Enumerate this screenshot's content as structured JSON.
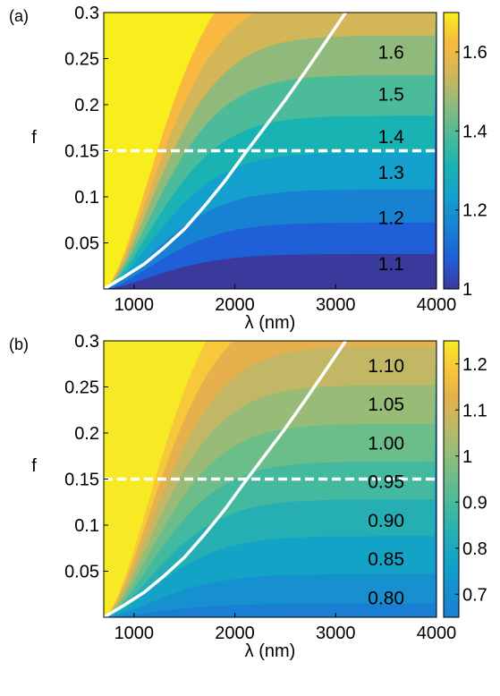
{
  "chart_data": [
    {
      "type": "contour",
      "panel_label": "(a)",
      "xlabel": "λ (nm)",
      "ylabel": "f",
      "xlim": [
        700,
        4000
      ],
      "ylim": [
        0,
        0.3
      ],
      "xticks": [
        1000,
        2000,
        3000,
        4000
      ],
      "xtick_labels": [
        "1000",
        "2000",
        "3000",
        "4000"
      ],
      "yticks": [
        0.05,
        0.1,
        0.15,
        0.2,
        0.25,
        0.3
      ],
      "ytick_labels": [
        "0.05",
        "0.1",
        "0.15",
        "0.2",
        "0.25",
        "0.3"
      ],
      "colorbar": {
        "range": [
          1.0,
          1.7
        ],
        "ticks": [
          1,
          1.2,
          1.4,
          1.6
        ],
        "tick_labels": [
          "1",
          "1.2",
          "1.4",
          "1.6"
        ]
      },
      "contour_levels": [
        1.1,
        1.2,
        1.3,
        1.4,
        1.5,
        1.6
      ],
      "contour_labels": [
        "1.1",
        "1.2",
        "1.3",
        "1.4",
        "1.5",
        "1.6"
      ],
      "contour_label_x": 3550,
      "contour_label_f": [
        0.028,
        0.078,
        0.127,
        0.166,
        0.212,
        0.258
      ],
      "band_colors": [
        "#3a3a9c",
        "#1f5fd8",
        "#1882d2",
        "#13a0cc",
        "#1ab3b3",
        "#4bbb99",
        "#8fba7c",
        "#d2b658",
        "#f9b840",
        "#f8ee1e"
      ],
      "asymptote_f": [
        0.038,
        0.072,
        0.108,
        0.148,
        0.188,
        0.232,
        0.275,
        0.32,
        0.37
      ],
      "white_curve": [
        [
          700,
          0.0
        ],
        [
          900,
          0.013
        ],
        [
          1100,
          0.027
        ],
        [
          1300,
          0.045
        ],
        [
          1500,
          0.065
        ],
        [
          1700,
          0.09
        ],
        [
          1900,
          0.117
        ],
        [
          2100,
          0.147
        ],
        [
          2300,
          0.176
        ],
        [
          2500,
          0.205
        ],
        [
          2700,
          0.236
        ],
        [
          2900,
          0.268
        ],
        [
          3100,
          0.3
        ]
      ],
      "dashed_line_f": 0.15
    },
    {
      "type": "contour",
      "panel_label": "(b)",
      "xlabel": "λ (nm)",
      "ylabel": "f",
      "xlim": [
        700,
        4000
      ],
      "ylim": [
        0,
        0.3
      ],
      "xticks": [
        1000,
        2000,
        3000,
        4000
      ],
      "xtick_labels": [
        "1000",
        "2000",
        "3000",
        "4000"
      ],
      "yticks": [
        0.05,
        0.1,
        0.15,
        0.2,
        0.25,
        0.3
      ],
      "ytick_labels": [
        "0.05",
        "0.1",
        "0.15",
        "0.2",
        "0.25",
        "0.3"
      ],
      "colorbar": {
        "range": [
          0.65,
          1.25
        ],
        "ticks": [
          0.7,
          0.8,
          0.9,
          1.0,
          1.1,
          1.2
        ],
        "tick_labels": [
          "0.7",
          "0.8",
          "0.9",
          "1",
          "1.1",
          "1.2"
        ]
      },
      "contour_levels": [
        0.8,
        0.85,
        0.9,
        0.95,
        1.0,
        1.05,
        1.1
      ],
      "contour_labels": [
        "0.80",
        "0.85",
        "0.90",
        "0.95",
        "1.00",
        "1.05",
        "1.10"
      ],
      "contour_label_x": 3500,
      "contour_label_f": [
        0.022,
        0.064,
        0.106,
        0.148,
        0.19,
        0.232,
        0.274
      ],
      "band_colors": [
        "#1a7fd4",
        "#1790cf",
        "#12a3c6",
        "#25afb5",
        "#43b9a0",
        "#6bbd8a",
        "#98bc78",
        "#c2b764",
        "#e6b04c",
        "#f7c83a",
        "#f8e925"
      ],
      "asymptote_f": [
        0.015,
        0.047,
        0.088,
        0.128,
        0.169,
        0.21,
        0.252,
        0.294,
        0.34,
        0.39
      ],
      "white_curve": [
        [
          700,
          0.0
        ],
        [
          900,
          0.013
        ],
        [
          1100,
          0.027
        ],
        [
          1300,
          0.045
        ],
        [
          1500,
          0.065
        ],
        [
          1700,
          0.09
        ],
        [
          1900,
          0.117
        ],
        [
          2100,
          0.147
        ],
        [
          2300,
          0.176
        ],
        [
          2500,
          0.205
        ],
        [
          2700,
          0.236
        ],
        [
          2900,
          0.268
        ],
        [
          3100,
          0.3
        ]
      ],
      "dashed_line_f": 0.15
    }
  ]
}
